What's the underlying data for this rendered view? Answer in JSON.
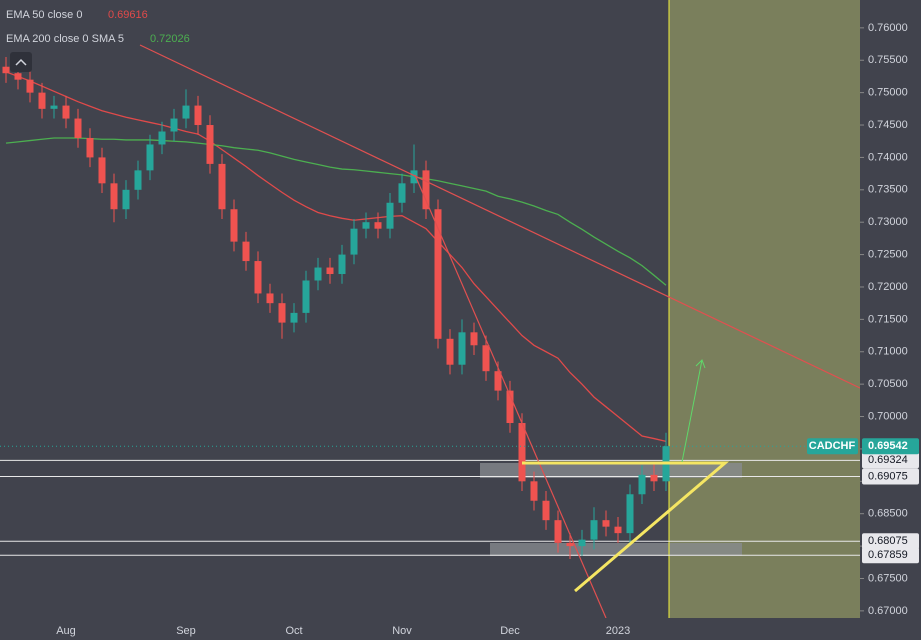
{
  "chart_data": {
    "type": "candlestick",
    "symbol": "CADCHF",
    "background": "#41434d",
    "up_color": "#26a69a",
    "down_color": "#ef5350",
    "categories": [
      null,
      null,
      null,
      null,
      null,
      "Aug",
      null,
      null,
      null,
      null,
      null,
      null,
      null,
      null,
      null,
      "Sep",
      null,
      null,
      null,
      null,
      null,
      null,
      null,
      null,
      "Oct",
      null,
      null,
      null,
      null,
      null,
      null,
      null,
      null,
      "Nov",
      null,
      null,
      null,
      null,
      null,
      null,
      null,
      null,
      "Dec",
      null,
      null,
      null,
      null,
      null,
      null,
      null,
      null,
      "2023",
      null,
      null,
      null,
      null
    ],
    "open": [
      0.754,
      0.753,
      0.752,
      0.75,
      0.7475,
      0.748,
      0.746,
      0.743,
      0.74,
      0.736,
      0.732,
      0.735,
      0.738,
      0.742,
      0.744,
      0.746,
      0.748,
      0.745,
      0.739,
      0.732,
      0.727,
      0.724,
      0.719,
      0.7175,
      0.7145,
      0.716,
      0.721,
      0.723,
      0.722,
      0.725,
      0.729,
      0.73,
      0.729,
      0.733,
      0.736,
      0.738,
      0.732,
      0.712,
      0.708,
      0.713,
      0.711,
      0.707,
      0.704,
      0.699,
      0.69,
      0.687,
      0.684,
      0.6805,
      0.68,
      0.681,
      0.684,
      0.683,
      0.682,
      0.688,
      0.691,
      0.69
    ],
    "high": [
      0.7555,
      0.7545,
      0.7535,
      0.7515,
      0.7495,
      0.7495,
      0.7475,
      0.7445,
      0.7415,
      0.7375,
      0.7365,
      0.7395,
      0.7435,
      0.7455,
      0.7475,
      0.7505,
      0.7495,
      0.7465,
      0.7405,
      0.7335,
      0.7285,
      0.7255,
      0.7205,
      0.719,
      0.7175,
      0.7225,
      0.7245,
      0.7245,
      0.7265,
      0.7305,
      0.7315,
      0.7315,
      0.7345,
      0.7375,
      0.742,
      0.7395,
      0.7335,
      0.7135,
      0.715,
      0.7145,
      0.7125,
      0.7085,
      0.7055,
      0.7005,
      0.6915,
      0.6885,
      0.6855,
      0.682,
      0.6825,
      0.686,
      0.6855,
      0.6845,
      0.6895,
      0.6925,
      0.693,
      0.6975
    ],
    "low": [
      0.7515,
      0.7505,
      0.7485,
      0.746,
      0.746,
      0.7445,
      0.7415,
      0.7385,
      0.7345,
      0.73,
      0.7305,
      0.7335,
      0.7365,
      0.7405,
      0.7425,
      0.7445,
      0.7435,
      0.7375,
      0.7305,
      0.7255,
      0.7225,
      0.7175,
      0.716,
      0.712,
      0.713,
      0.7145,
      0.7195,
      0.7205,
      0.7205,
      0.7235,
      0.7275,
      0.7275,
      0.7275,
      0.7315,
      0.7345,
      0.7305,
      0.7105,
      0.7065,
      0.7065,
      0.7095,
      0.7055,
      0.7025,
      0.6975,
      0.6885,
      0.6855,
      0.6825,
      0.679,
      0.678,
      0.6785,
      0.6795,
      0.6815,
      0.6805,
      0.6805,
      0.6865,
      0.6885,
      0.6885
    ],
    "close": [
      0.753,
      0.752,
      0.75,
      0.7475,
      0.748,
      0.746,
      0.743,
      0.74,
      0.736,
      0.732,
      0.735,
      0.738,
      0.742,
      0.744,
      0.746,
      0.748,
      0.745,
      0.739,
      0.732,
      0.727,
      0.724,
      0.719,
      0.7175,
      0.7145,
      0.716,
      0.721,
      0.723,
      0.722,
      0.725,
      0.729,
      0.73,
      0.729,
      0.733,
      0.736,
      0.738,
      0.732,
      0.712,
      0.708,
      0.713,
      0.711,
      0.707,
      0.704,
      0.699,
      0.69,
      0.687,
      0.684,
      0.6805,
      0.68,
      0.681,
      0.684,
      0.683,
      0.682,
      0.688,
      0.691,
      0.69,
      0.69542
    ],
    "series": [
      {
        "name": "EMA 50 close 0",
        "color": "#e04a4a",
        "values": [
          0.7532,
          0.7525,
          0.7518,
          0.751,
          0.7502,
          0.7494,
          0.7486,
          0.7479,
          0.7472,
          0.7467,
          0.7462,
          0.7458,
          0.7454,
          0.745,
          0.7445,
          0.744,
          0.7436,
          0.7425,
          0.7412,
          0.7399,
          0.7386,
          0.7372,
          0.7359,
          0.7346,
          0.7334,
          0.7324,
          0.7315,
          0.731,
          0.7306,
          0.7303,
          0.7305,
          0.7307,
          0.7309,
          0.731,
          0.73,
          0.729,
          0.727,
          0.725,
          0.723,
          0.7205,
          0.7185,
          0.7165,
          0.7145,
          0.7125,
          0.711,
          0.71,
          0.709,
          0.7068,
          0.705,
          0.703,
          0.7015,
          0.7,
          0.6985,
          0.697,
          0.6966,
          0.69616
        ]
      },
      {
        "name": "EMA 200 close 0 SMA 5",
        "color": "#4caf50",
        "values": [
          0.7422,
          0.7424,
          0.7426,
          0.7428,
          0.743,
          0.743,
          0.743,
          0.7429,
          0.7428,
          0.7428,
          0.7427,
          0.7427,
          0.7427,
          0.7426,
          0.7425,
          0.7424,
          0.7422,
          0.742,
          0.7418,
          0.7415,
          0.7413,
          0.7411,
          0.7407,
          0.7402,
          0.7397,
          0.7393,
          0.7389,
          0.7385,
          0.7382,
          0.7381,
          0.7379,
          0.7377,
          0.7375,
          0.7373,
          0.737,
          0.7367,
          0.7364,
          0.736,
          0.7356,
          0.7352,
          0.7348,
          0.734,
          0.7336,
          0.7331,
          0.7325,
          0.7318,
          0.7312,
          0.73,
          0.7289,
          0.7277,
          0.7266,
          0.7255,
          0.7245,
          0.7233,
          0.7218,
          0.72026
        ]
      }
    ],
    "levels": [
      0.69324,
      0.69075,
      0.68075,
      0.67859
    ],
    "ylim": [
      0.6689,
      0.7643
    ],
    "yticks": [
      {
        "value": 0.67,
        "label": "0.67000"
      },
      {
        "value": 0.675,
        "label": "0.67500"
      },
      {
        "value": 0.68,
        "label": "0.68000"
      },
      {
        "value": 0.685,
        "label": "0.68500"
      },
      {
        "value": 0.69,
        "label": "0.69000"
      },
      {
        "value": 0.695,
        "label": "0.69500"
      },
      {
        "value": 0.7,
        "label": "0.70000"
      },
      {
        "value": 0.705,
        "label": "0.70500"
      },
      {
        "value": 0.71,
        "label": "0.71000"
      },
      {
        "value": 0.715,
        "label": "0.71500"
      },
      {
        "value": 0.72,
        "label": "0.72000"
      },
      {
        "value": 0.725,
        "label": "0.72500"
      },
      {
        "value": 0.73,
        "label": "0.73000"
      },
      {
        "value": 0.735,
        "label": "0.73500"
      },
      {
        "value": 0.74,
        "label": "0.74000"
      },
      {
        "value": 0.745,
        "label": "0.74500"
      },
      {
        "value": 0.75,
        "label": "0.75000"
      },
      {
        "value": 0.755,
        "label": "0.75500"
      },
      {
        "value": 0.76,
        "label": "0.76000"
      }
    ]
  }
}
